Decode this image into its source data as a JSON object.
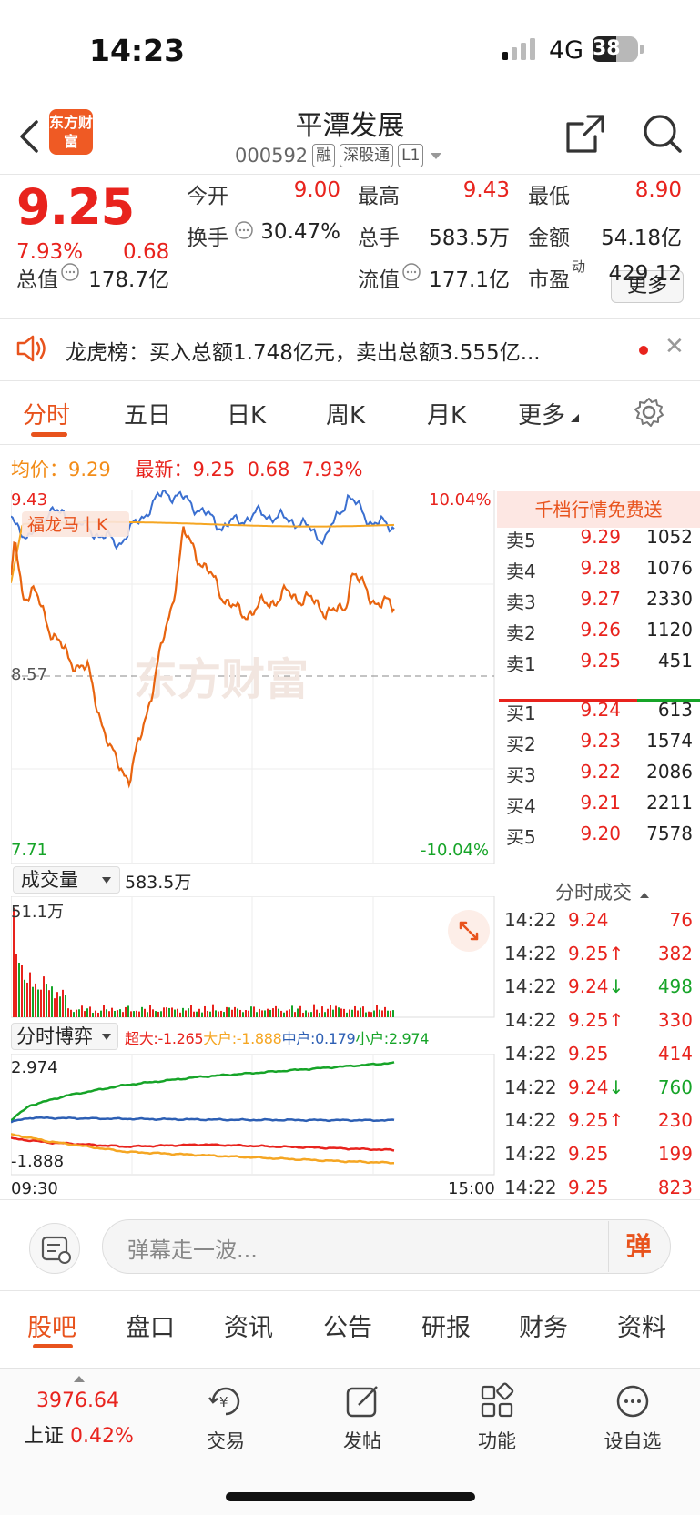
{
  "status_bar": {
    "time": "14:23",
    "network": "4G",
    "battery": "38"
  },
  "header": {
    "logo_text": "东方财富",
    "stock_name": "平潭发展",
    "code": "000592",
    "tags": [
      "融",
      "深股通",
      "L1"
    ]
  },
  "quote": {
    "price": "9.25",
    "change_pct": "7.93%",
    "change": "0.68",
    "stats": [
      {
        "label": "今开",
        "value": "9.00",
        "color": "red"
      },
      {
        "label": "最高",
        "value": "9.43",
        "color": "red"
      },
      {
        "label": "最低",
        "value": "8.90",
        "color": "red"
      },
      {
        "label": "换手",
        "value": "30.47%",
        "color": "black"
      },
      {
        "label": "总手",
        "value": "583.5万",
        "color": "black"
      },
      {
        "label": "金额",
        "value": "54.18亿",
        "color": "black"
      },
      {
        "label": "总值",
        "value": "178.7亿",
        "color": "black"
      },
      {
        "label": "流值",
        "value": "177.1亿",
        "color": "black"
      },
      {
        "label": "市盈",
        "value": "429.12",
        "color": "black",
        "sup": "动"
      }
    ],
    "more_label": "更多"
  },
  "banner": {
    "text": "龙虎榜：买入总额1.748亿元，卖出总额3.555亿..."
  },
  "period_tabs": [
    "分时",
    "五日",
    "日K",
    "周K",
    "月K",
    "更多"
  ],
  "chart": {
    "avg_label": "均价：",
    "avg_value": "9.29",
    "latest_label": "最新：",
    "latest_price": "9.25",
    "latest_change": "0.68",
    "latest_pct": "7.93%",
    "y_top": "9.43",
    "y_mid": "8.57",
    "y_bottom": "7.71",
    "pct_top": "10.04%",
    "pct_bottom": "-10.04%",
    "flag": "福龙马丨K",
    "watermark": "东方财富",
    "volume_label": "成交量",
    "volume_total": "583.5万",
    "volume_max": "51.1万",
    "game_label": "分时博弈",
    "flow": [
      {
        "name": "超大",
        "value": "-1.265",
        "color": "#e8231d"
      },
      {
        "name": "大户",
        "value": "-1.888",
        "color": "#f5a623"
      },
      {
        "name": "中户",
        "value": "0.179",
        "color": "#2d5fb4"
      },
      {
        "name": "小户",
        "value": "2.974",
        "color": "#16a428"
      }
    ],
    "flow_top": "2.974",
    "flow_bottom": "-1.888",
    "time_start": "09:30",
    "time_end": "15:00"
  },
  "order_book": {
    "banner": "千档行情免费送",
    "asks": [
      {
        "label": "卖5",
        "price": "9.29",
        "vol": "1052"
      },
      {
        "label": "卖4",
        "price": "9.28",
        "vol": "1076"
      },
      {
        "label": "卖3",
        "price": "9.27",
        "vol": "2330"
      },
      {
        "label": "卖2",
        "price": "9.26",
        "vol": "1120"
      },
      {
        "label": "卖1",
        "price": "9.25",
        "vol": "451"
      }
    ],
    "bids": [
      {
        "label": "买1",
        "price": "9.24",
        "vol": "613"
      },
      {
        "label": "买2",
        "price": "9.23",
        "vol": "1574"
      },
      {
        "label": "买3",
        "price": "9.22",
        "vol": "2086"
      },
      {
        "label": "买4",
        "price": "9.21",
        "vol": "2211"
      },
      {
        "label": "买5",
        "price": "9.20",
        "vol": "7578"
      }
    ],
    "trades_title": "分时成交",
    "trades": [
      {
        "time": "14:22",
        "price": "9.24",
        "dir": "",
        "vol": "76",
        "vc": "red"
      },
      {
        "time": "14:22",
        "price": "9.25",
        "dir": "↑",
        "vol": "382",
        "vc": "red"
      },
      {
        "time": "14:22",
        "price": "9.24",
        "dir": "↓",
        "vol": "498",
        "vc": "green"
      },
      {
        "time": "14:22",
        "price": "9.25",
        "dir": "↑",
        "vol": "330",
        "vc": "red"
      },
      {
        "time": "14:22",
        "price": "9.25",
        "dir": "",
        "vol": "414",
        "vc": "red"
      },
      {
        "time": "14:22",
        "price": "9.24",
        "dir": "↓",
        "vol": "760",
        "vc": "green"
      },
      {
        "time": "14:22",
        "price": "9.25",
        "dir": "↑",
        "vol": "230",
        "vc": "red"
      },
      {
        "time": "14:22",
        "price": "9.25",
        "dir": "",
        "vol": "199",
        "vc": "red"
      },
      {
        "time": "14:22",
        "price": "9.25",
        "dir": "",
        "vol": "823",
        "vc": "red"
      }
    ]
  },
  "danmu": {
    "placeholder": "弹幕走一波...",
    "send": "弹"
  },
  "bottom_tabs": [
    "股吧",
    "盘口",
    "资讯",
    "公告",
    "研报",
    "财务",
    "资料"
  ],
  "dock": {
    "index_value": "3976.64",
    "index_name": "上证",
    "index_pct": "0.42%",
    "items": [
      "交易",
      "发帖",
      "功能",
      "设自选"
    ]
  },
  "colors": {
    "up": "#e8231d",
    "down": "#16a428",
    "accent": "#e8531d",
    "avg": "#f5a623",
    "price_line": "#e8640f",
    "index_line": "#3a6fd0"
  }
}
